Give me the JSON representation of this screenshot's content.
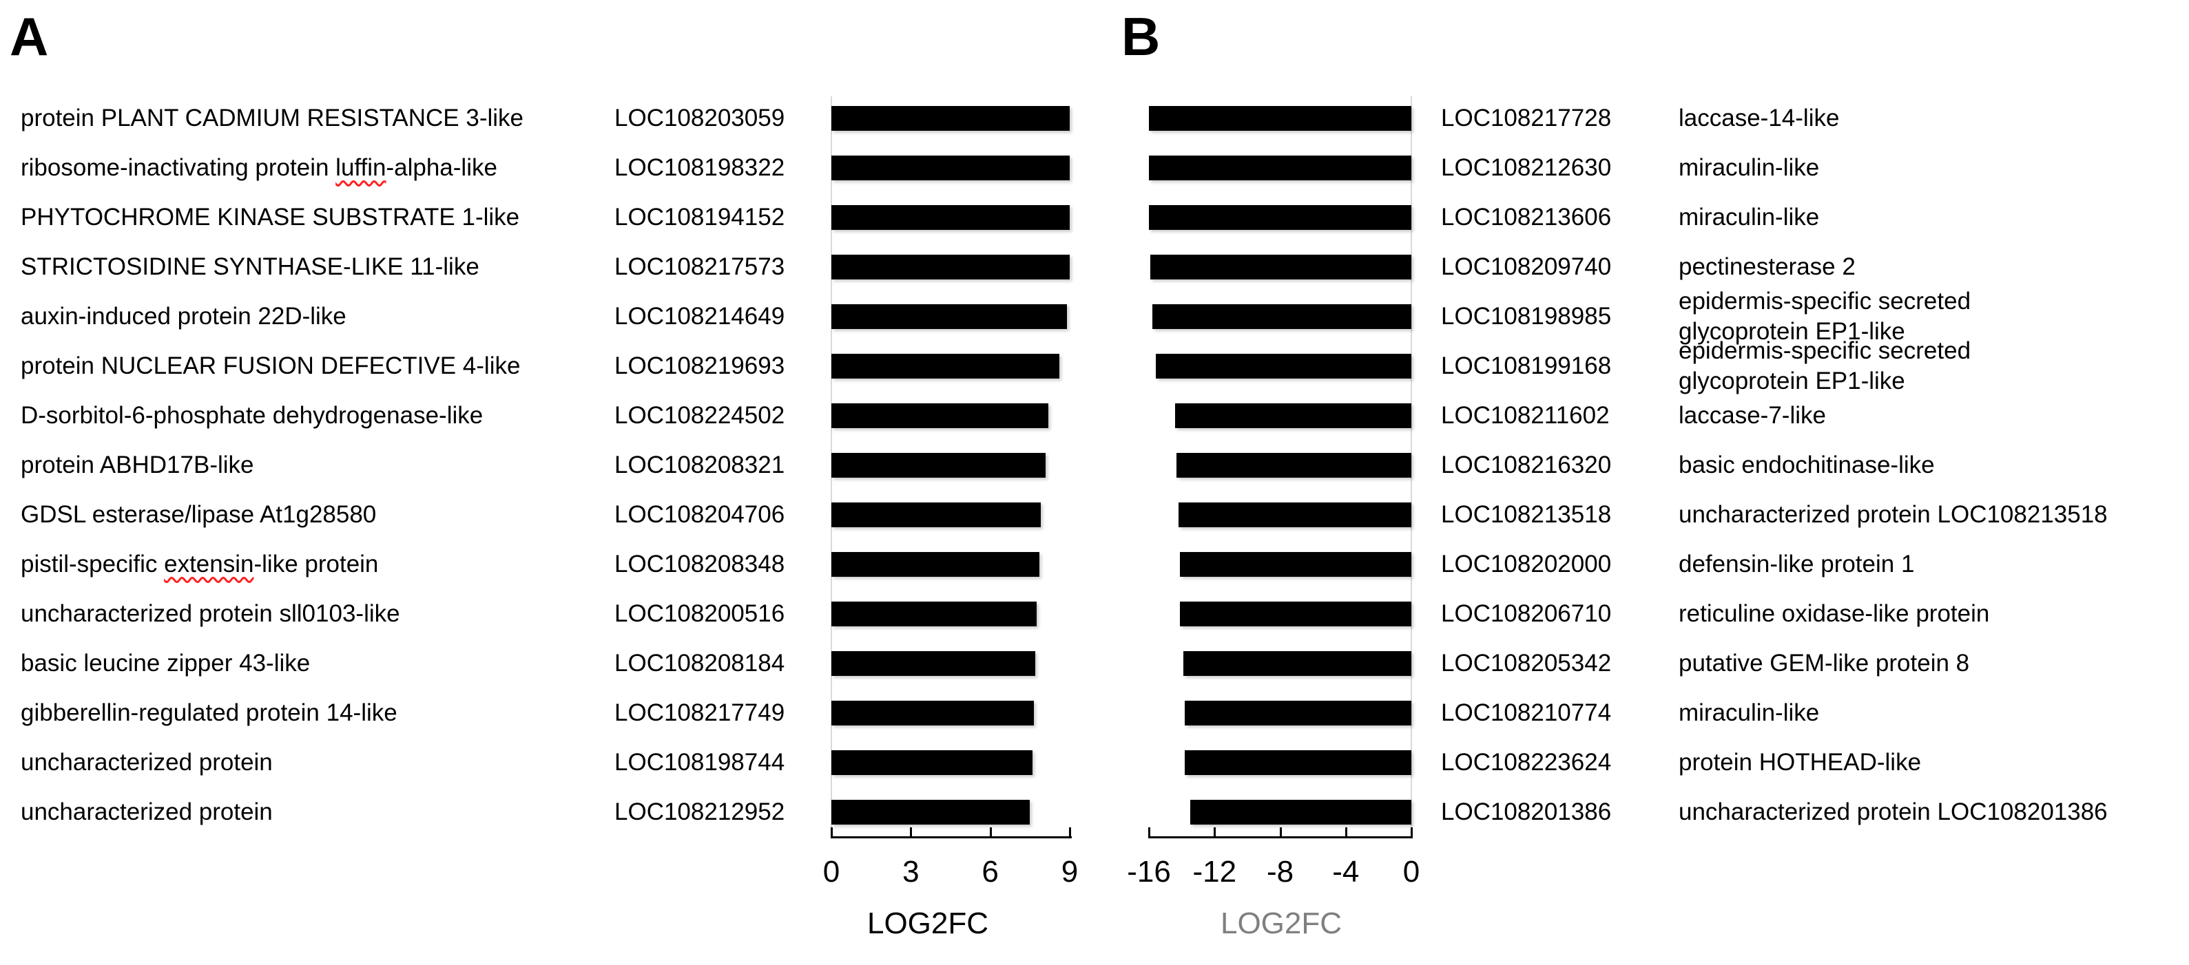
{
  "panels": {
    "a": {
      "title": "A",
      "axis": {
        "label": "LOG2FC",
        "label_color": "#000000",
        "min": 0,
        "max": 9,
        "ticks": [
          0,
          3,
          6,
          9
        ]
      }
    },
    "b": {
      "title": "B",
      "axis": {
        "label": "LOG2FC",
        "label_color": "#7f7f7f",
        "min": -16,
        "max": 0,
        "ticks": [
          -16,
          -12,
          -8,
          -4,
          0
        ]
      }
    }
  },
  "colors": {
    "bar": "#000000",
    "axis_line": "#000000",
    "baseline_gray": "#d9d9d9",
    "spellcheck_wavy": "#ff2020",
    "b_axis_label_gray": "#7f7f7f"
  },
  "rows": [
    {
      "a": {
        "pre": "protein PLANT CADMIUM RESISTANCE 3-like",
        "wavy": "",
        "post": ""
      },
      "a_loc": "LOC108203059",
      "a_value": 9.0,
      "b_value": -16.0,
      "b_loc": "LOC108217728",
      "b_desc": "laccase-14-like"
    },
    {
      "a": {
        "pre": "ribosome-inactivating protein ",
        "wavy": "luffin",
        "post": "-alpha-like"
      },
      "a_loc": "LOC108198322",
      "a_value": 9.0,
      "b_value": -16.0,
      "b_loc": "LOC108212630",
      "b_desc": "miraculin-like"
    },
    {
      "a": {
        "pre": "PHYTOCHROME KINASE SUBSTRATE 1-like",
        "wavy": "",
        "post": ""
      },
      "a_loc": "LOC108194152",
      "a_value": 9.0,
      "b_value": -16.0,
      "b_loc": "LOC108213606",
      "b_desc": "miraculin-like"
    },
    {
      "a": {
        "pre": "STRICTOSIDINE SYNTHASE-LIKE 11-like",
        "wavy": "",
        "post": ""
      },
      "a_loc": "LOC108217573",
      "a_value": 9.0,
      "b_value": -15.9,
      "b_loc": "LOC108209740",
      "b_desc": "pectinesterase 2"
    },
    {
      "a": {
        "pre": "auxin-induced protein 22D-like",
        "wavy": "",
        "post": ""
      },
      "a_loc": "LOC108214649",
      "a_value": 8.9,
      "b_value": -15.8,
      "b_loc": "LOC108198985",
      "b_desc": "epidermis-specific secreted\nglycoprotein EP1-like"
    },
    {
      "a": {
        "pre": "protein NUCLEAR FUSION DEFECTIVE 4-like",
        "wavy": "",
        "post": ""
      },
      "a_loc": "LOC108219693",
      "a_value": 8.6,
      "b_value": -15.6,
      "b_loc": "LOC108199168",
      "b_desc": "epidermis-specific secreted\nglycoprotein EP1-like"
    },
    {
      "a": {
        "pre": "D-sorbitol-6-phosphate dehydrogenase-like",
        "wavy": "",
        "post": ""
      },
      "a_loc": "LOC108224502",
      "a_value": 8.2,
      "b_value": -14.4,
      "b_loc": "LOC108211602",
      "b_desc": "laccase-7-like"
    },
    {
      "a": {
        "pre": "protein ABHD17B-like",
        "wavy": "",
        "post": ""
      },
      "a_loc": "LOC108208321",
      "a_value": 8.1,
      "b_value": -14.3,
      "b_loc": "LOC108216320",
      "b_desc": "basic endochitinase-like"
    },
    {
      "a": {
        "pre": "GDSL esterase/lipase At1g28580",
        "wavy": "",
        "post": ""
      },
      "a_loc": "LOC108204706",
      "a_value": 7.9,
      "b_value": -14.2,
      "b_loc": "LOC108213518",
      "b_desc": "uncharacterized protein LOC108213518"
    },
    {
      "a": {
        "pre": "pistil-specific ",
        "wavy": "extensin",
        "post": "-like protein"
      },
      "a_loc": "LOC108208348",
      "a_value": 7.85,
      "b_value": -14.1,
      "b_loc": "LOC108202000",
      "b_desc": "defensin-like protein 1"
    },
    {
      "a": {
        "pre": "uncharacterized protein sll0103-like",
        "wavy": "",
        "post": ""
      },
      "a_loc": "LOC108200516",
      "a_value": 7.75,
      "b_value": -14.1,
      "b_loc": "LOC108206710",
      "b_desc": "reticuline oxidase-like protein"
    },
    {
      "a": {
        "pre": "basic leucine zipper 43-like",
        "wavy": "",
        "post": ""
      },
      "a_loc": "LOC108208184",
      "a_value": 7.7,
      "b_value": -13.9,
      "b_loc": "LOC108205342",
      "b_desc": "putative GEM-like protein 8"
    },
    {
      "a": {
        "pre": "gibberellin-regulated protein 14-like",
        "wavy": "",
        "post": ""
      },
      "a_loc": "LOC108217749",
      "a_value": 7.65,
      "b_value": -13.8,
      "b_loc": "LOC108210774",
      "b_desc": "miraculin-like"
    },
    {
      "a": {
        "pre": "uncharacterized protein",
        "wavy": "",
        "post": ""
      },
      "a_loc": "LOC108198744",
      "a_value": 7.6,
      "b_value": -13.8,
      "b_loc": "LOC108223624",
      "b_desc": "protein HOTHEAD-like"
    },
    {
      "a": {
        "pre": "uncharacterized protein",
        "wavy": "",
        "post": ""
      },
      "a_loc": "LOC108212952",
      "a_value": 7.5,
      "b_value": -13.5,
      "b_loc": "LOC108201386",
      "b_desc": "uncharacterized protein LOC108201386"
    }
  ],
  "chart_data": [
    {
      "type": "bar",
      "orientation": "horizontal",
      "title": "A",
      "xlabel": "LOG2FC",
      "xlim": [
        0,
        9
      ],
      "xticks": [
        0,
        3,
        6,
        9
      ],
      "grid": false,
      "bar_color": "#000000",
      "categories": [
        "LOC108203059",
        "LOC108198322",
        "LOC108194152",
        "LOC108217573",
        "LOC108214649",
        "LOC108219693",
        "LOC108224502",
        "LOC108208321",
        "LOC108204706",
        "LOC108208348",
        "LOC108200516",
        "LOC108208184",
        "LOC108217749",
        "LOC108198744",
        "LOC108212952"
      ],
      "category_descriptions": [
        "protein PLANT CADMIUM RESISTANCE 3-like",
        "ribosome-inactivating protein luffin-alpha-like",
        "PHYTOCHROME KINASE SUBSTRATE 1-like",
        "STRICTOSIDINE SYNTHASE-LIKE 11-like",
        "auxin-induced protein 22D-like",
        "protein NUCLEAR FUSION DEFECTIVE 4-like",
        "D-sorbitol-6-phosphate dehydrogenase-like",
        "protein ABHD17B-like",
        "GDSL esterase/lipase At1g28580",
        "pistil-specific extensin-like protein",
        "uncharacterized protein sll0103-like",
        "basic leucine zipper 43-like",
        "gibberellin-regulated protein 14-like",
        "uncharacterized protein",
        "uncharacterized protein"
      ],
      "values": [
        9.0,
        9.0,
        9.0,
        9.0,
        8.9,
        8.6,
        8.2,
        8.1,
        7.9,
        7.85,
        7.75,
        7.7,
        7.65,
        7.6,
        7.5
      ]
    },
    {
      "type": "bar",
      "orientation": "horizontal",
      "title": "B",
      "xlabel": "LOG2FC",
      "xlim": [
        -16,
        0
      ],
      "xticks": [
        -16,
        -12,
        -8,
        -4,
        0
      ],
      "grid": false,
      "bar_color": "#000000",
      "categories": [
        "LOC108217728",
        "LOC108212630",
        "LOC108213606",
        "LOC108209740",
        "LOC108198985",
        "LOC108199168",
        "LOC108211602",
        "LOC108216320",
        "LOC108213518",
        "LOC108202000",
        "LOC108206710",
        "LOC108205342",
        "LOC108210774",
        "LOC108223624",
        "LOC108201386"
      ],
      "category_descriptions": [
        "laccase-14-like",
        "miraculin-like",
        "miraculin-like",
        "pectinesterase 2",
        "epidermis-specific secreted glycoprotein EP1-like",
        "epidermis-specific secreted glycoprotein EP1-like",
        "laccase-7-like",
        "basic endochitinase-like",
        "uncharacterized protein LOC108213518",
        "defensin-like protein 1",
        "reticuline oxidase-like protein",
        "putative GEM-like protein 8",
        "miraculin-like",
        "protein HOTHEAD-like",
        "uncharacterized protein LOC108201386"
      ],
      "values": [
        -16.0,
        -16.0,
        -16.0,
        -15.9,
        -15.8,
        -15.6,
        -14.4,
        -14.3,
        -14.2,
        -14.1,
        -14.1,
        -13.9,
        -13.8,
        -13.8,
        -13.5
      ]
    }
  ]
}
